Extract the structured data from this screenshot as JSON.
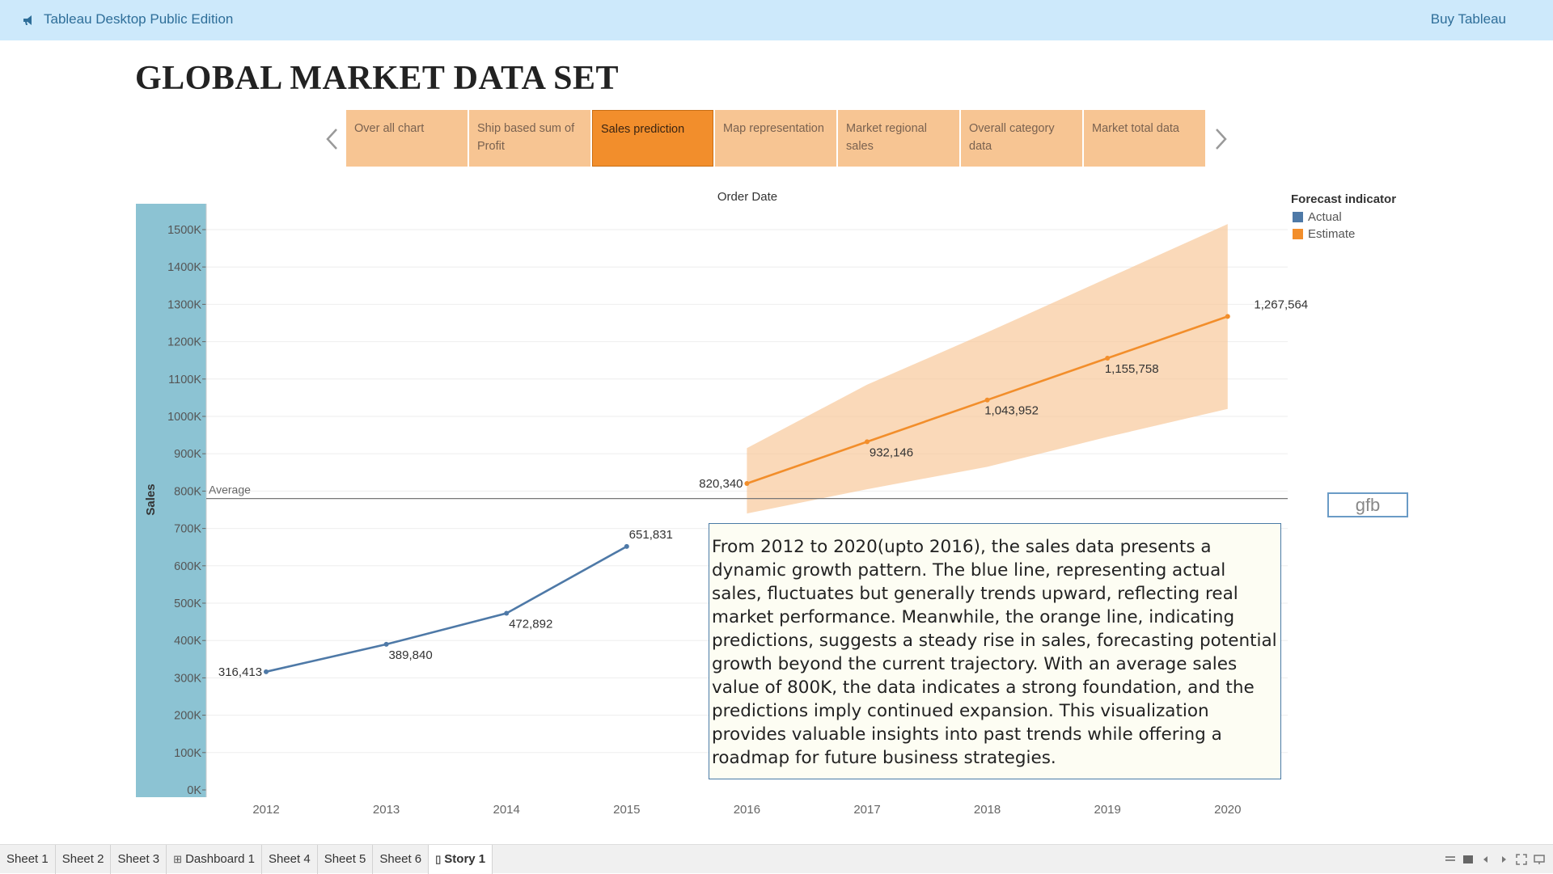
{
  "app": {
    "title": "Tableau Desktop Public Edition",
    "buy_label": "Buy Tableau"
  },
  "story": {
    "title": "GLOBAL MARKET DATA SET",
    "tabs": [
      {
        "label": "Over all chart",
        "active": false
      },
      {
        "label": "Ship based sum of Profit",
        "active": false
      },
      {
        "label": "Sales prediction",
        "active": true
      },
      {
        "label": "Map representation",
        "active": false
      },
      {
        "label": "Market regional sales",
        "active": false
      },
      {
        "label": "Overall category data",
        "active": false
      },
      {
        "label": "Market total data",
        "active": false
      }
    ]
  },
  "legend": {
    "title": "Forecast indicator",
    "items": [
      {
        "label": "Actual",
        "color": "#4e79a7"
      },
      {
        "label": "Estimate",
        "color": "#f28e2b"
      }
    ]
  },
  "annotation": {
    "text": "From 2012 to 2020(upto 2016), the sales data presents a dynamic growth pattern. The blue line, representing actual sales, fluctuates but generally trends upward, reflecting real market performance. Meanwhile, the orange line, indicating predictions, suggests a steady rise in sales, forecasting potential growth beyond the current trajectory. With an average sales value of 800K, the data indicates a strong foundation, and the predictions imply continued expansion. This visualization provides valuable insights into past trends while offering a roadmap for future business strategies."
  },
  "gfb_box": {
    "text": "gfb"
  },
  "chart_data": {
    "type": "line",
    "title": "Order Date",
    "xlabel": "",
    "ylabel": "Sales",
    "x": [
      "2012",
      "2013",
      "2014",
      "2015",
      "2016",
      "2017",
      "2018",
      "2019",
      "2020"
    ],
    "ylim": [
      0,
      1550000
    ],
    "y_ticks": [
      0,
      100000,
      200000,
      300000,
      400000,
      500000,
      600000,
      700000,
      800000,
      900000,
      1000000,
      1100000,
      1200000,
      1300000,
      1400000,
      1500000
    ],
    "y_tick_labels": [
      "0K",
      "100K",
      "200K",
      "300K",
      "400K",
      "500K",
      "600K",
      "700K",
      "800K",
      "900K",
      "1000K",
      "1100K",
      "1200K",
      "1300K",
      "1400K",
      "1500K"
    ],
    "series": [
      {
        "name": "Actual",
        "color": "#4e79a7",
        "points": [
          [
            "2012",
            316413
          ],
          [
            "2013",
            389840
          ],
          [
            "2014",
            472892
          ],
          [
            "2015",
            651831
          ]
        ],
        "labels": [
          "316,413",
          "389,840",
          "472,892",
          "651,831"
        ]
      },
      {
        "name": "Estimate",
        "color": "#f28e2b",
        "points": [
          [
            "2016",
            820340
          ],
          [
            "2017",
            932146
          ],
          [
            "2018",
            1043952
          ],
          [
            "2019",
            1155758
          ],
          [
            "2020",
            1267564
          ]
        ],
        "labels": [
          "820,340",
          "932,146",
          "1,043,952",
          "1,155,758",
          "1,267,564"
        ]
      }
    ],
    "prediction_band": {
      "x": [
        "2016",
        "2017",
        "2018",
        "2019",
        "2020"
      ],
      "upper": [
        915000,
        1085000,
        1225000,
        1370000,
        1515000
      ],
      "lower": [
        740000,
        805000,
        865000,
        945000,
        1020000
      ],
      "color": "#f7c593"
    },
    "reference_line": {
      "label": "Average",
      "value": 780000
    },
    "grid": true
  },
  "sheets": {
    "tabs": [
      {
        "label": "Sheet 1",
        "icon": "",
        "active": false
      },
      {
        "label": "Sheet 2",
        "icon": "",
        "active": false
      },
      {
        "label": "Sheet 3",
        "icon": "",
        "active": false
      },
      {
        "label": "Dashboard 1",
        "icon": "dashboard-icon",
        "active": false
      },
      {
        "label": "Sheet 4",
        "icon": "",
        "active": false
      },
      {
        "label": "Sheet 5",
        "icon": "",
        "active": false
      },
      {
        "label": "Sheet 6",
        "icon": "",
        "active": false
      },
      {
        "label": "Story 1",
        "icon": "story-icon",
        "active": true
      }
    ]
  }
}
